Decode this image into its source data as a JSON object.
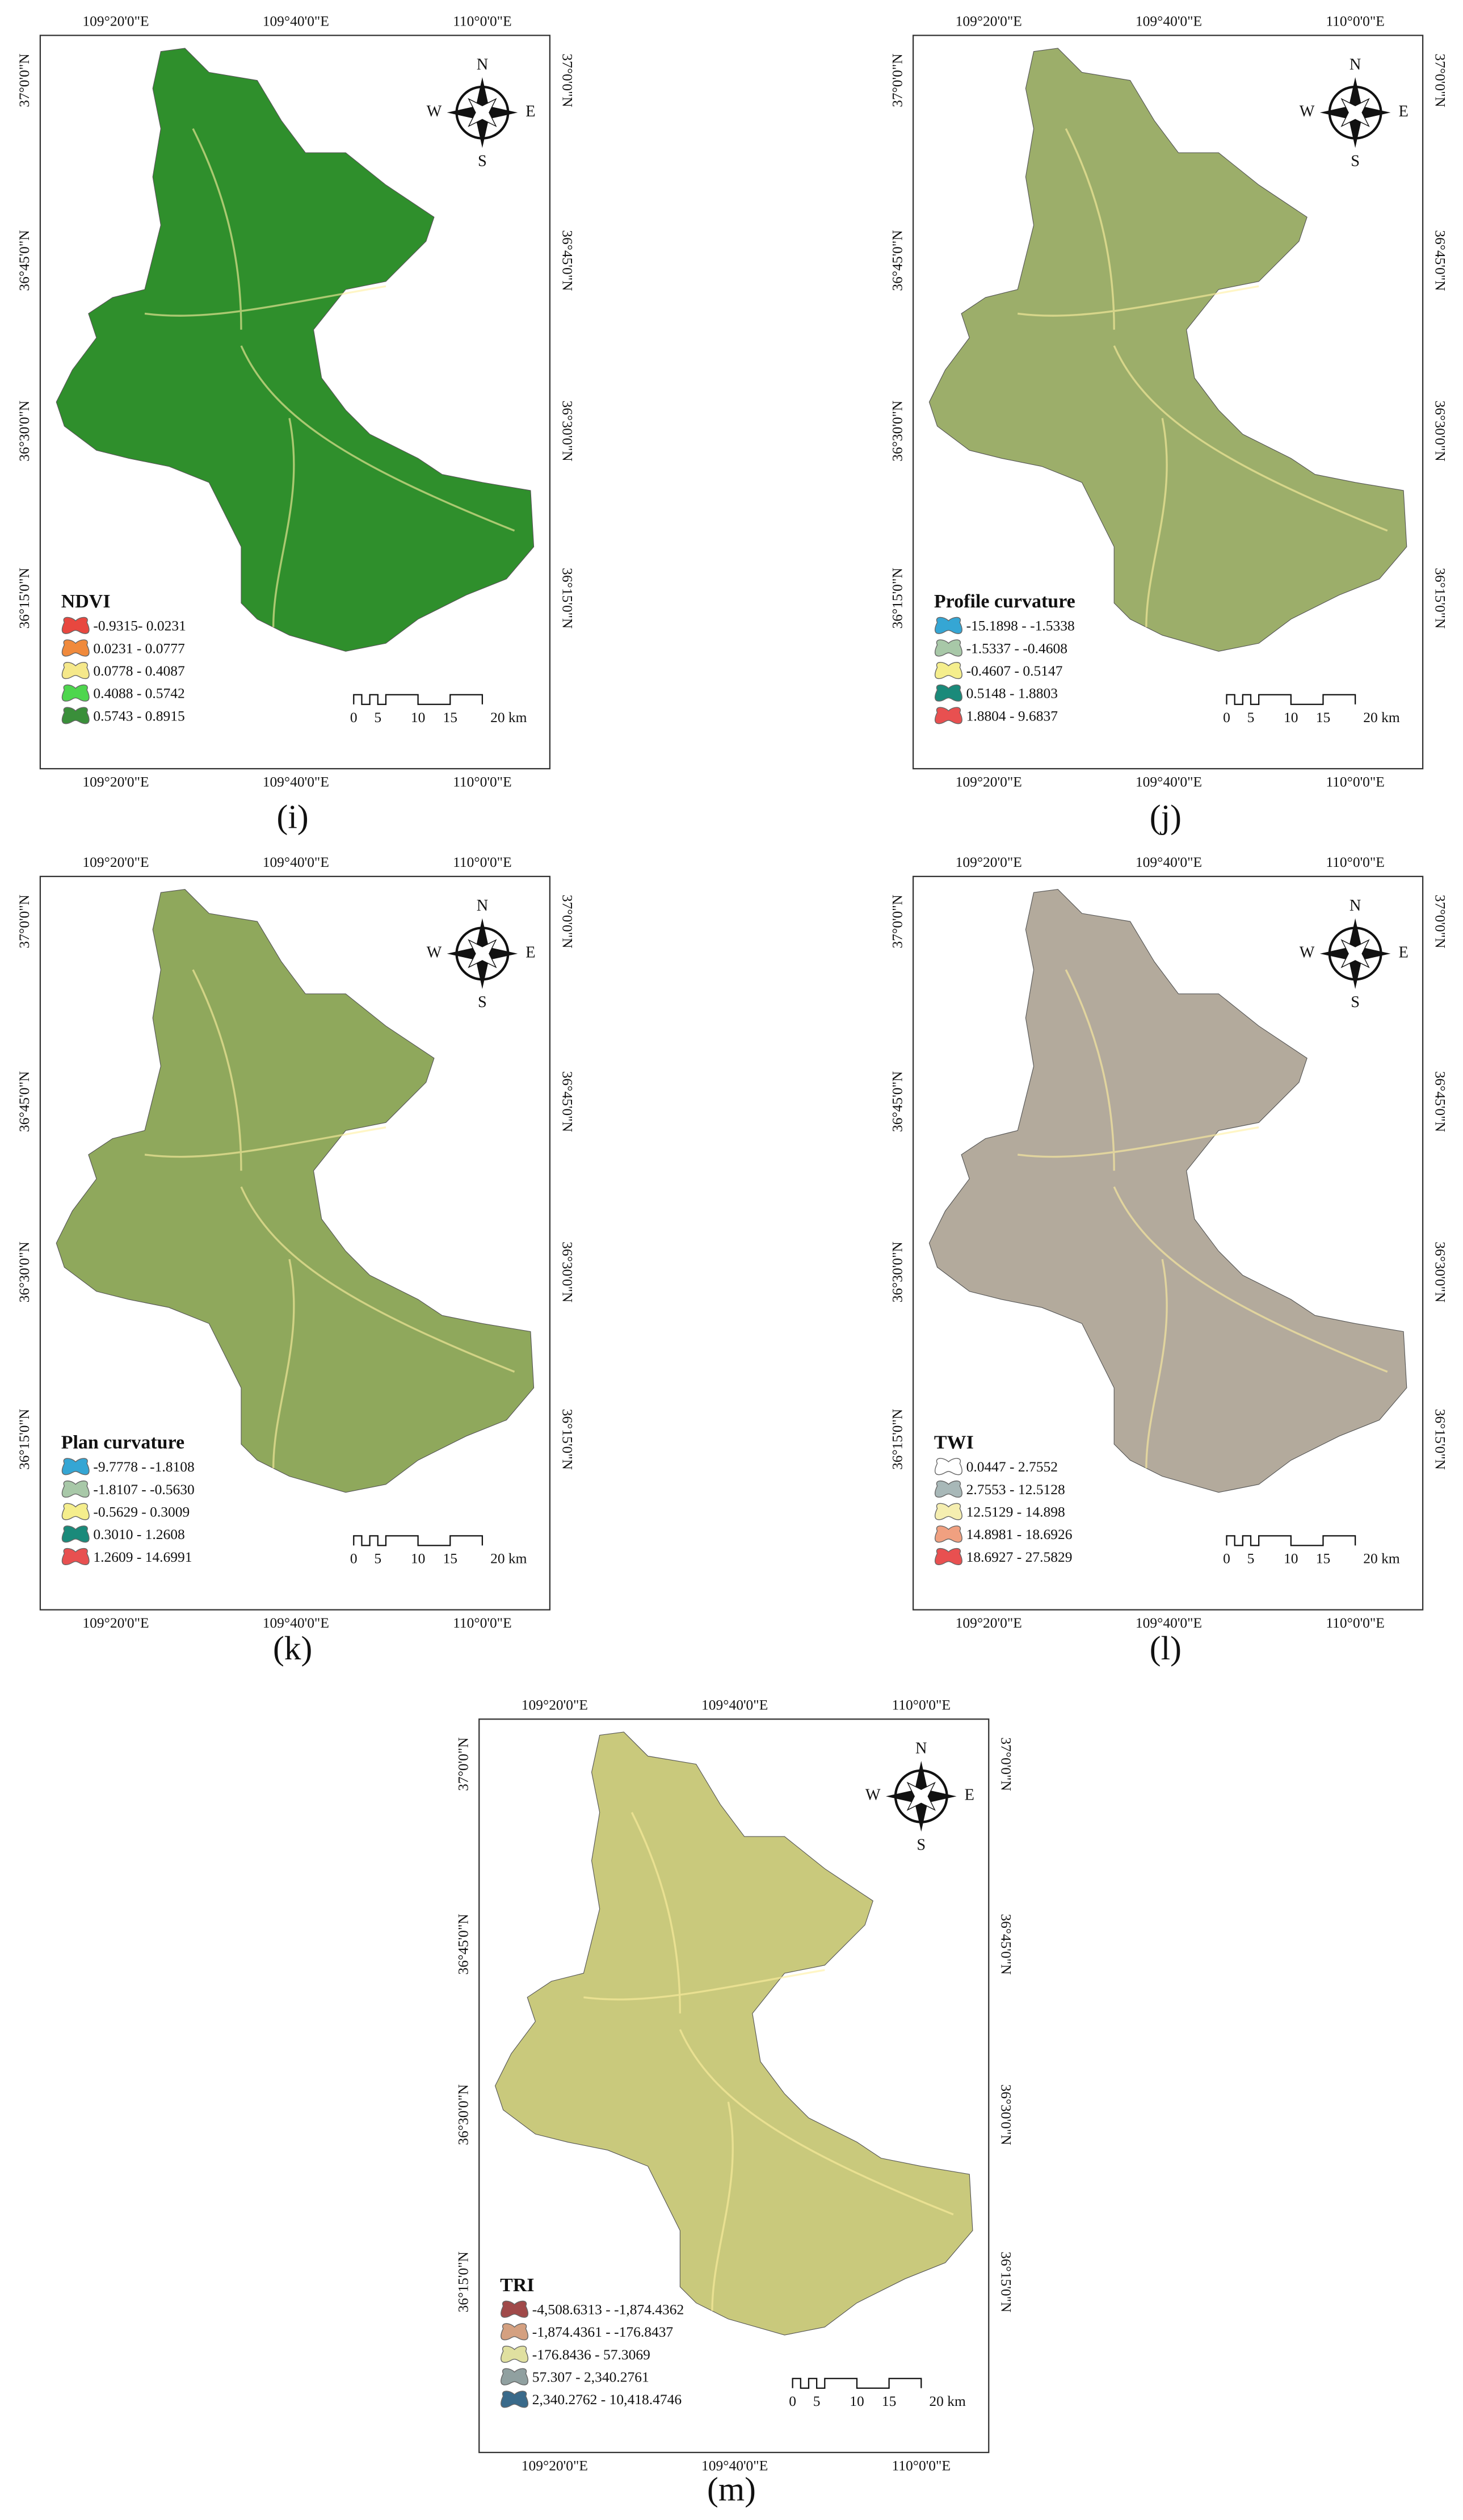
{
  "top_lon_labels": [
    "109°20'0\"E",
    "109°40'0\"E",
    "110°0'0\"E"
  ],
  "lat_labels": [
    "37°0'0\"N",
    "36°45'0\"N",
    "36°30'0\"N",
    "36°15'0\"N"
  ],
  "compass": {
    "north": "N",
    "south": "S",
    "west": "W",
    "east": "E"
  },
  "scale_labels": [
    "0",
    "5",
    "10",
    "15",
    "20 km"
  ],
  "panels": [
    {
      "label": "(i)",
      "legend_title": "NDVI",
      "map_color": "#2f8f2c",
      "legend": [
        {
          "label": "-0.9315- 0.0231",
          "color": "#e8473f"
        },
        {
          "label": "0.0231 - 0.0777",
          "color": "#f08a3c"
        },
        {
          "label": "0.0778 - 0.4087",
          "color": "#f5e88a"
        },
        {
          "label": "0.4088 - 0.5742",
          "color": "#4ed64e"
        },
        {
          "label": "0.5743 - 0.8915",
          "color": "#3a8f3a"
        }
      ]
    },
    {
      "label": "(j)",
      "legend_title": "Profile curvature",
      "map_color": "#9cae6a",
      "legend": [
        {
          "label": "-15.1898 - -1.5338",
          "color": "#35a6d4"
        },
        {
          "label": "-1.5337 - -0.4608",
          "color": "#a8c8a8"
        },
        {
          "label": "-0.4607 - 0.5147",
          "color": "#f5ee8c"
        },
        {
          "label": "0.5148 - 1.8803",
          "color": "#1a8a7a"
        },
        {
          "label": "1.8804 - 9.6837",
          "color": "#e85050"
        }
      ]
    },
    {
      "label": "(k)",
      "legend_title": "Plan curvature",
      "map_color": "#8fa85c",
      "legend": [
        {
          "label": "-9.7778 - -1.8108",
          "color": "#35a6d4"
        },
        {
          "label": "-1.8107 - -0.5630",
          "color": "#a8c8a8"
        },
        {
          "label": "-0.5629 - 0.3009",
          "color": "#f5ee8c"
        },
        {
          "label": "0.3010 - 1.2608",
          "color": "#1a8a7a"
        },
        {
          "label": "1.2609 - 14.6991",
          "color": "#e85050"
        }
      ]
    },
    {
      "label": "(l)",
      "legend_title": "TWI",
      "map_color": "#b3aa9c",
      "legend": [
        {
          "label": "0.0447 - 2.7552",
          "color": "#ffffff"
        },
        {
          "label": "2.7553 - 12.5128",
          "color": "#a8b8b8"
        },
        {
          "label": "12.5129 - 14.898",
          "color": "#f5eeb0"
        },
        {
          "label": "14.8981 - 18.6926",
          "color": "#f0a080"
        },
        {
          "label": "18.6927 - 27.5829",
          "color": "#e85050"
        }
      ]
    },
    {
      "label": "(m)",
      "legend_title": "TRI",
      "map_color": "#c9c97c",
      "legend": [
        {
          "label": "-4,508.6313 - -1,874.4362",
          "color": "#a04a4a"
        },
        {
          "label": "-1,874.4361 - -176.8437",
          "color": "#d4a080"
        },
        {
          "label": "-176.8436 - 57.3069",
          "color": "#e0e0a0"
        },
        {
          "label": "57.307 - 2,340.2761",
          "color": "#90a0a0"
        },
        {
          "label": "2,340.2762 - 10,418.4746",
          "color": "#3a6a8a"
        }
      ]
    }
  ]
}
